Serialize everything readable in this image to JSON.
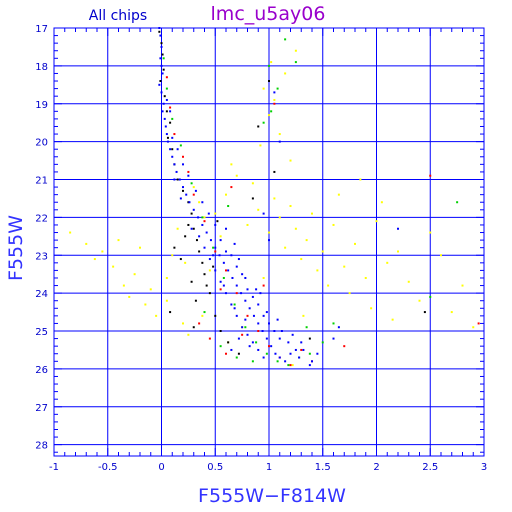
{
  "chart_data": {
    "type": "scatter",
    "title": "lmc_u5ay06",
    "subtitle": "All chips",
    "xlabel": "F555W−F814W",
    "ylabel": "F555W",
    "xlim": [
      -1,
      3
    ],
    "ylim": [
      28.3,
      17
    ],
    "y_inverted": true,
    "grid": true,
    "x_ticks": [
      -1,
      -0.5,
      0,
      0.5,
      1,
      1.5,
      2,
      2.5,
      3
    ],
    "x_tick_labels": [
      "-1",
      "-0.5",
      "0",
      "0.5",
      "1",
      "1.5",
      "2",
      "2.5",
      "3"
    ],
    "y_ticks": [
      17,
      18,
      19,
      20,
      21,
      22,
      23,
      24,
      25,
      26,
      27,
      28
    ],
    "y_tick_labels": [
      "17",
      "18",
      "19",
      "20",
      "21",
      "22",
      "23",
      "24",
      "25",
      "26",
      "27",
      "28"
    ],
    "series": [
      {
        "color": "#ffff00",
        "points": [
          [
            -0.85,
            22.4
          ],
          [
            -0.7,
            22.7
          ],
          [
            -0.62,
            23.1
          ],
          [
            -0.55,
            22.9
          ],
          [
            -0.45,
            23.3
          ],
          [
            -0.4,
            22.6
          ],
          [
            -0.35,
            23.8
          ],
          [
            -0.3,
            24.1
          ],
          [
            -0.25,
            23.5
          ],
          [
            -0.2,
            22.8
          ],
          [
            -0.15,
            24.3
          ],
          [
            -0.1,
            23.9
          ],
          [
            -0.05,
            24.6
          ],
          [
            0.05,
            24.2
          ],
          [
            0.1,
            23.0
          ],
          [
            0.15,
            22.3
          ],
          [
            0.2,
            24.8
          ],
          [
            0.25,
            25.1
          ],
          [
            0.3,
            21.2
          ],
          [
            0.35,
            21.6
          ],
          [
            0.4,
            22.0
          ],
          [
            0.45,
            23.4
          ],
          [
            0.5,
            21.9
          ],
          [
            0.55,
            22.5
          ],
          [
            0.6,
            21.4
          ],
          [
            0.65,
            20.6
          ],
          [
            0.7,
            20.9
          ],
          [
            0.75,
            24.9
          ],
          [
            0.8,
            22.2
          ],
          [
            0.85,
            21.1
          ],
          [
            0.9,
            21.8
          ],
          [
            0.95,
            23.6
          ],
          [
            1.0,
            22.4
          ],
          [
            1.05,
            21.5
          ],
          [
            1.1,
            22.0
          ],
          [
            1.15,
            22.8
          ],
          [
            1.2,
            21.7
          ],
          [
            1.25,
            22.3
          ],
          [
            1.3,
            23.1
          ],
          [
            1.35,
            22.6
          ],
          [
            1.4,
            21.9
          ],
          [
            1.45,
            23.4
          ],
          [
            1.5,
            22.9
          ],
          [
            1.55,
            23.8
          ],
          [
            1.6,
            22.2
          ],
          [
            1.65,
            21.4
          ],
          [
            1.7,
            23.3
          ],
          [
            1.75,
            24.0
          ],
          [
            1.8,
            22.7
          ],
          [
            1.85,
            21.0
          ],
          [
            1.9,
            23.6
          ],
          [
            1.95,
            24.4
          ],
          [
            2.0,
            22.1
          ],
          [
            2.05,
            21.6
          ],
          [
            2.1,
            23.2
          ],
          [
            2.15,
            24.7
          ],
          [
            2.2,
            22.9
          ],
          [
            2.3,
            23.7
          ],
          [
            2.4,
            24.2
          ],
          [
            2.5,
            22.4
          ],
          [
            2.6,
            23.0
          ],
          [
            2.7,
            24.5
          ],
          [
            2.8,
            23.8
          ],
          [
            2.9,
            24.9
          ],
          [
            0.95,
            18.6
          ],
          [
            1.0,
            19.3
          ],
          [
            1.05,
            18.9
          ],
          [
            1.1,
            19.8
          ],
          [
            1.15,
            18.2
          ],
          [
            1.2,
            20.5
          ],
          [
            1.25,
            17.6
          ],
          [
            0.92,
            20.1
          ],
          [
            1.02,
            17.9
          ],
          [
            0.05,
            23.6
          ],
          [
            0.22,
            23.2
          ],
          [
            0.62,
            25.3
          ],
          [
            0.38,
            24.6
          ],
          [
            1.32,
            24.6
          ],
          [
            1.22,
            25.9
          ]
        ]
      },
      {
        "color": "#000000",
        "points": [
          [
            -0.02,
            17.1
          ],
          [
            0.0,
            17.4
          ],
          [
            0.01,
            17.7
          ],
          [
            0.02,
            18.1
          ],
          [
            -0.01,
            18.4
          ],
          [
            0.03,
            18.8
          ],
          [
            0.05,
            19.2
          ],
          [
            0.08,
            19.5
          ],
          [
            0.06,
            19.9
          ],
          [
            0.1,
            20.2
          ],
          [
            0.12,
            20.6
          ],
          [
            0.15,
            21.0
          ],
          [
            0.2,
            21.3
          ],
          [
            0.25,
            21.6
          ],
          [
            0.28,
            21.9
          ],
          [
            0.3,
            22.3
          ],
          [
            0.33,
            22.6
          ],
          [
            0.35,
            22.9
          ],
          [
            0.38,
            23.2
          ],
          [
            0.4,
            23.5
          ],
          [
            0.42,
            23.8
          ],
          [
            0.45,
            24.0
          ],
          [
            0.18,
            23.1
          ],
          [
            0.22,
            22.5
          ],
          [
            0.28,
            23.7
          ],
          [
            0.32,
            24.2
          ],
          [
            0.5,
            24.6
          ],
          [
            0.55,
            25.0
          ],
          [
            0.62,
            25.3
          ],
          [
            0.25,
            22.2
          ],
          [
            0.3,
            24.9
          ],
          [
            0.48,
            23.3
          ],
          [
            0.12,
            22.8
          ],
          [
            0.08,
            24.5
          ],
          [
            0.52,
            22.1
          ],
          [
            1.0,
            18.4
          ],
          [
            0.9,
            19.6
          ],
          [
            1.05,
            20.8
          ],
          [
            0.85,
            21.5
          ],
          [
            2.45,
            24.5
          ],
          [
            1.38,
            25.2
          ],
          [
            0.72,
            25.6
          ]
        ]
      },
      {
        "color": "#ff0000",
        "points": [
          [
            0.05,
            18.3
          ],
          [
            0.08,
            19.1
          ],
          [
            0.12,
            19.8
          ],
          [
            0.2,
            20.4
          ],
          [
            0.3,
            21.4
          ],
          [
            0.4,
            22.1
          ],
          [
            0.5,
            22.9
          ],
          [
            0.6,
            23.4
          ],
          [
            0.7,
            24.0
          ],
          [
            0.8,
            24.6
          ],
          [
            0.9,
            25.0
          ],
          [
            1.0,
            25.4
          ],
          [
            1.1,
            25.7
          ],
          [
            1.2,
            25.9
          ],
          [
            0.45,
            25.2
          ],
          [
            0.6,
            25.6
          ],
          [
            0.75,
            25.1
          ],
          [
            1.3,
            25.5
          ],
          [
            0.95,
            23.8
          ],
          [
            1.4,
            25.8
          ],
          [
            0.35,
            24.8
          ],
          [
            1.05,
            19.0
          ],
          [
            2.5,
            20.9
          ],
          [
            2.95,
            24.8
          ],
          [
            0.55,
            23.9
          ],
          [
            0.65,
            21.2
          ],
          [
            0.25,
            20.8
          ],
          [
            1.7,
            25.4
          ]
        ]
      },
      {
        "color": "#00d000",
        "points": [
          [
            0.02,
            17.8
          ],
          [
            0.05,
            18.6
          ],
          [
            0.1,
            19.4
          ],
          [
            0.18,
            20.1
          ],
          [
            0.28,
            21.1
          ],
          [
            0.38,
            22.0
          ],
          [
            0.48,
            22.8
          ],
          [
            0.58,
            23.6
          ],
          [
            0.68,
            24.3
          ],
          [
            0.78,
            24.9
          ],
          [
            0.88,
            25.3
          ],
          [
            0.98,
            25.6
          ],
          [
            1.08,
            25.8
          ],
          [
            1.18,
            25.9
          ],
          [
            1.28,
            25.7
          ],
          [
            1.38,
            25.6
          ],
          [
            0.55,
            25.4
          ],
          [
            0.7,
            25.7
          ],
          [
            0.85,
            25.8
          ],
          [
            1.0,
            18.0
          ],
          [
            1.02,
            19.2
          ],
          [
            1.08,
            18.6
          ],
          [
            0.95,
            19.5
          ],
          [
            1.15,
            17.3
          ],
          [
            1.25,
            17.9
          ],
          [
            1.35,
            24.9
          ],
          [
            2.5,
            24.1
          ],
          [
            2.75,
            21.6
          ],
          [
            0.4,
            24.5
          ],
          [
            1.5,
            25.3
          ],
          [
            0.62,
            21.7
          ],
          [
            1.6,
            24.8
          ]
        ]
      },
      {
        "color": "#0000ff",
        "points": [
          [
            -0.02,
            17.0
          ],
          [
            -0.01,
            17.2
          ],
          [
            0.0,
            17.5
          ],
          [
            -0.01,
            17.8
          ],
          [
            0.0,
            18.0
          ],
          [
            0.01,
            18.2
          ],
          [
            -0.02,
            18.5
          ],
          [
            0.0,
            18.7
          ],
          [
            0.02,
            19.0
          ],
          [
            0.01,
            19.2
          ],
          [
            0.03,
            19.4
          ],
          [
            0.04,
            19.6
          ],
          [
            0.05,
            19.8
          ],
          [
            0.06,
            20.0
          ],
          [
            0.08,
            20.2
          ],
          [
            0.1,
            20.4
          ],
          [
            0.12,
            20.6
          ],
          [
            0.14,
            20.8
          ],
          [
            0.17,
            21.0
          ],
          [
            0.2,
            21.2
          ],
          [
            0.23,
            21.4
          ],
          [
            0.26,
            21.6
          ],
          [
            0.3,
            21.8
          ],
          [
            0.34,
            22.0
          ],
          [
            0.38,
            22.2
          ],
          [
            0.42,
            22.4
          ],
          [
            0.46,
            22.6
          ],
          [
            0.5,
            22.8
          ],
          [
            0.54,
            23.0
          ],
          [
            0.58,
            23.2
          ],
          [
            0.62,
            23.4
          ],
          [
            0.66,
            23.6
          ],
          [
            0.7,
            23.8
          ],
          [
            0.74,
            24.0
          ],
          [
            0.78,
            24.2
          ],
          [
            0.82,
            24.4
          ],
          [
            0.86,
            24.6
          ],
          [
            0.9,
            24.8
          ],
          [
            0.94,
            25.0
          ],
          [
            0.98,
            25.2
          ],
          [
            1.02,
            25.4
          ],
          [
            1.06,
            25.6
          ],
          [
            1.1,
            25.7
          ],
          [
            1.15,
            25.8
          ],
          [
            1.2,
            25.6
          ],
          [
            1.25,
            25.5
          ],
          [
            1.3,
            25.3
          ],
          [
            0.55,
            22.6
          ],
          [
            0.6,
            22.9
          ],
          [
            0.65,
            23.0
          ],
          [
            0.7,
            23.3
          ],
          [
            0.75,
            23.5
          ],
          [
            0.8,
            23.9
          ],
          [
            0.85,
            24.1
          ],
          [
            0.9,
            24.3
          ],
          [
            0.95,
            24.6
          ],
          [
            1.0,
            24.8
          ],
          [
            1.05,
            25.0
          ],
          [
            1.1,
            25.2
          ],
          [
            0.45,
            23.1
          ],
          [
            0.5,
            23.4
          ],
          [
            0.55,
            23.7
          ],
          [
            0.6,
            24.0
          ],
          [
            0.65,
            24.3
          ],
          [
            0.7,
            24.6
          ],
          [
            0.75,
            24.9
          ],
          [
            0.8,
            25.1
          ],
          [
            0.85,
            25.3
          ],
          [
            0.9,
            25.5
          ],
          [
            0.95,
            25.7
          ],
          [
            0.35,
            22.5
          ],
          [
            0.4,
            22.8
          ],
          [
            0.6,
            22.3
          ],
          [
            0.68,
            22.7
          ],
          [
            0.72,
            23.1
          ],
          [
            0.78,
            23.6
          ],
          [
            0.88,
            23.9
          ],
          [
            0.92,
            24.0
          ],
          [
            0.98,
            24.5
          ],
          [
            1.08,
            24.7
          ],
          [
            1.12,
            25.0
          ],
          [
            1.18,
            25.3
          ],
          [
            1.22,
            25.1
          ],
          [
            1.28,
            25.7
          ],
          [
            1.32,
            25.5
          ],
          [
            1.4,
            25.8
          ],
          [
            1.45,
            25.6
          ],
          [
            0.15,
            20.2
          ],
          [
            0.1,
            19.9
          ],
          [
            0.2,
            20.6
          ],
          [
            0.25,
            20.9
          ],
          [
            0.32,
            21.3
          ],
          [
            0.38,
            21.6
          ],
          [
            0.44,
            21.9
          ],
          [
            0.5,
            22.2
          ],
          [
            0.08,
            19.2
          ],
          [
            0.05,
            18.9
          ],
          [
            0.12,
            21.0
          ],
          [
            0.18,
            21.5
          ],
          [
            0.28,
            22.3
          ],
          [
            0.48,
            23.0
          ],
          [
            0.58,
            23.8
          ],
          [
            0.68,
            24.4
          ],
          [
            0.78,
            24.7
          ],
          [
            0.82,
            25.4
          ],
          [
            0.72,
            25.2
          ],
          [
            1.0,
            22.6
          ],
          [
            1.05,
            18.7
          ],
          [
            1.1,
            20.0
          ],
          [
            0.95,
            21.9
          ],
          [
            1.6,
            25.2
          ],
          [
            1.65,
            24.9
          ],
          [
            2.2,
            22.3
          ],
          [
            1.38,
            25.9
          ],
          [
            0.65,
            25.5
          ]
        ]
      }
    ]
  }
}
